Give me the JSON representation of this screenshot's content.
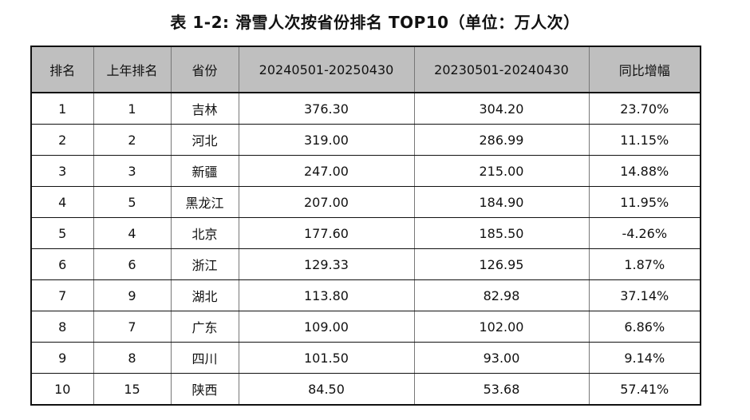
{
  "title": "表 1-2: 滑雪人次按省份排名 TOP10（单位：万人次）",
  "table": {
    "headers": [
      "排名",
      "上年排名",
      "省份",
      "20240501-20250430",
      "20230501-20240430",
      "同比增幅"
    ],
    "rows": [
      [
        "1",
        "1",
        "吉林",
        "376.30",
        "304.20",
        "23.70%"
      ],
      [
        "2",
        "2",
        "河北",
        "319.00",
        "286.99",
        "11.15%"
      ],
      [
        "3",
        "3",
        "新疆",
        "247.00",
        "215.00",
        "14.88%"
      ],
      [
        "4",
        "5",
        "黑龙江",
        "207.00",
        "184.90",
        "11.95%"
      ],
      [
        "5",
        "4",
        "北京",
        "177.60",
        "185.50",
        "-4.26%"
      ],
      [
        "6",
        "6",
        "浙江",
        "129.33",
        "126.95",
        "1.87%"
      ],
      [
        "7",
        "9",
        "湖北",
        "113.80",
        "82.98",
        "37.14%"
      ],
      [
        "8",
        "7",
        "广东",
        "109.00",
        "102.00",
        "6.86%"
      ],
      [
        "9",
        "8",
        "四川",
        "101.50",
        "93.00",
        "9.14%"
      ],
      [
        "10",
        "15",
        "陕西",
        "84.50",
        "53.68",
        "57.41%"
      ]
    ]
  }
}
